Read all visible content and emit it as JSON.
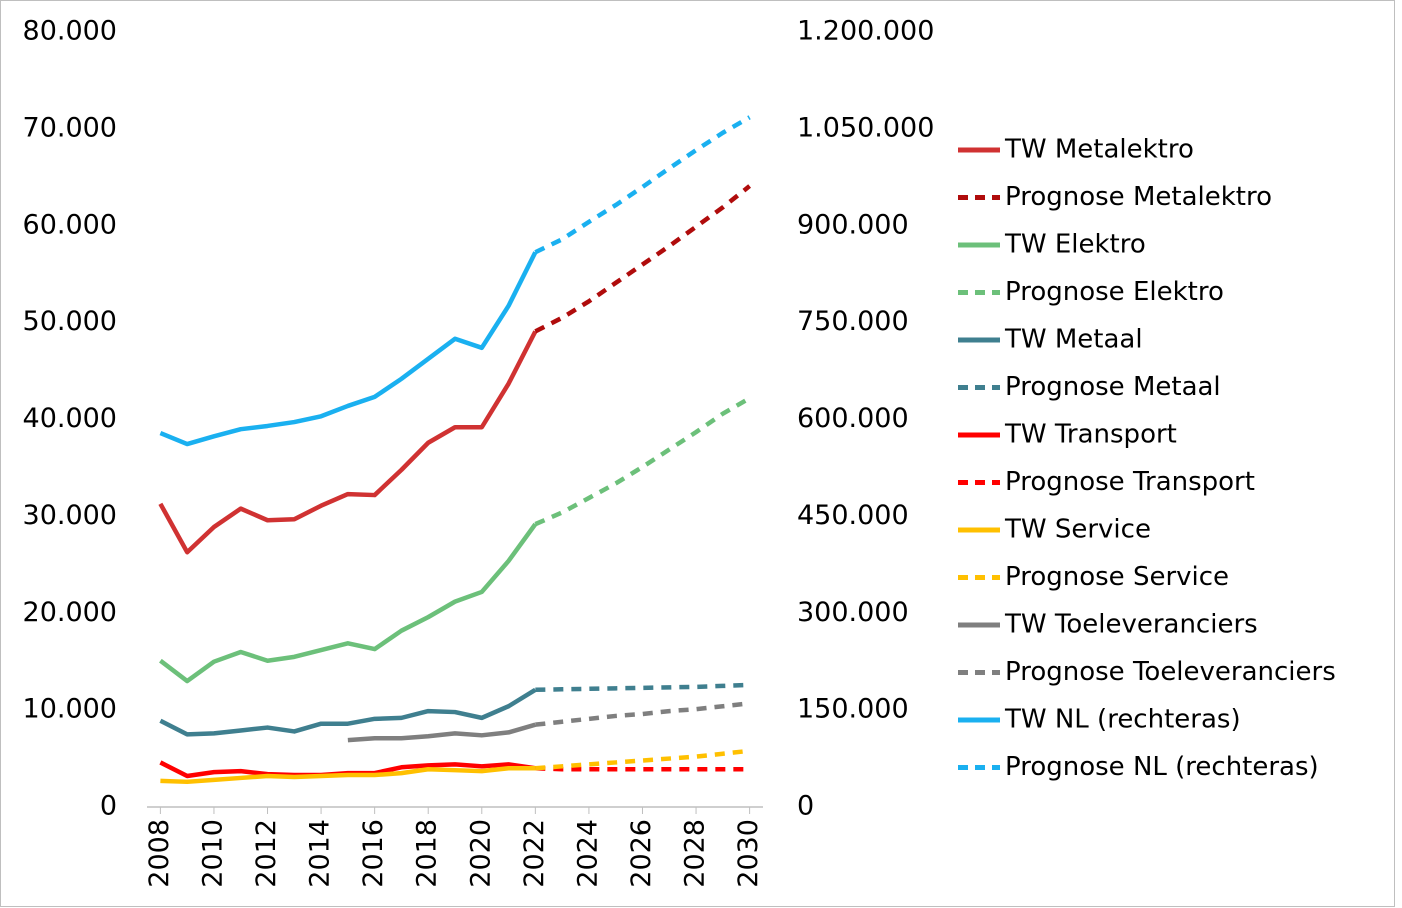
{
  "chart_data": {
    "type": "line",
    "x": [
      2008,
      2009,
      2010,
      2011,
      2012,
      2013,
      2014,
      2015,
      2016,
      2017,
      2018,
      2019,
      2020,
      2021,
      2022,
      2023,
      2024,
      2025,
      2026,
      2027,
      2028,
      2029,
      2030
    ],
    "xlim": [
      2007.5,
      2030.5
    ],
    "xticks": [
      2008,
      2010,
      2012,
      2014,
      2016,
      2018,
      2020,
      2022,
      2024,
      2026,
      2028,
      2030
    ],
    "ylim": [
      0,
      80000
    ],
    "yticks": [
      0,
      {
        "value": 10000,
        "label": "10.000"
      },
      {
        "value": 20000,
        "label": "20.000"
      },
      {
        "value": 30000,
        "label": "30.000"
      },
      {
        "value": 40000,
        "label": "40.000"
      },
      {
        "value": 50000,
        "label": "50.000"
      },
      {
        "value": 60000,
        "label": "60.000"
      },
      {
        "value": 70000,
        "label": "70.000"
      },
      {
        "value": 80000,
        "label": "80.000"
      }
    ],
    "y2lim": [
      0,
      1200000
    ],
    "y2ticks": [
      0,
      {
        "value": 150000,
        "label": "150.000"
      },
      {
        "value": 300000,
        "label": "300.000"
      },
      {
        "value": 450000,
        "label": "450.000"
      },
      {
        "value": 600000,
        "label": "600.000"
      },
      {
        "value": 750000,
        "label": "750.000"
      },
      {
        "value": 900000,
        "label": "900.000"
      },
      {
        "value": 1050000,
        "label": "1.050.000"
      },
      {
        "value": 1200000,
        "label": "1.200.000"
      }
    ],
    "grid": false,
    "legend": "right",
    "series": [
      {
        "name": "TW Metalektro",
        "color": "#d03232",
        "dashed": false,
        "values": [
          31300,
          26300,
          28900,
          30800,
          29600,
          29700,
          31100,
          32300,
          32200,
          34800,
          37600,
          39200,
          39200,
          43700,
          49100,
          null,
          null,
          null,
          null,
          null,
          null,
          null,
          null
        ]
      },
      {
        "name": "Prognose Metalektro",
        "color": "#b00c0c",
        "dashed": true,
        "values": [
          null,
          null,
          null,
          null,
          null,
          null,
          null,
          null,
          null,
          null,
          null,
          null,
          null,
          null,
          49100,
          50500,
          52200,
          54100,
          56000,
          57900,
          59900,
          61900,
          64100
        ]
      },
      {
        "name": "TW Elektro",
        "color": "#6cc07a",
        "dashed": false,
        "values": [
          15100,
          13000,
          15000,
          16000,
          15100,
          15500,
          16200,
          16900,
          16300,
          18200,
          19600,
          21200,
          22200,
          25400,
          29200,
          null,
          null,
          null,
          null,
          null,
          null,
          null,
          null
        ]
      },
      {
        "name": "Prognose Elektro",
        "color": "#6cc07a",
        "dashed": true,
        "values": [
          null,
          null,
          null,
          null,
          null,
          null,
          null,
          null,
          null,
          null,
          null,
          null,
          null,
          null,
          29200,
          30400,
          31900,
          33400,
          35100,
          36900,
          38700,
          40600,
          42200
        ]
      },
      {
        "name": "TW Metaal",
        "color": "#3f7f8f",
        "dashed": false,
        "values": [
          8900,
          7500,
          7600,
          7900,
          8200,
          7800,
          8600,
          8600,
          9100,
          9200,
          9900,
          9800,
          9200,
          10400,
          12100,
          null,
          null,
          null,
          null,
          null,
          null,
          null,
          null
        ]
      },
      {
        "name": "Prognose Metaal",
        "color": "#3f7f8f",
        "dashed": true,
        "values": [
          null,
          null,
          null,
          null,
          null,
          null,
          null,
          null,
          null,
          null,
          null,
          null,
          null,
          null,
          12100,
          12150,
          12200,
          12250,
          12300,
          12350,
          12400,
          12500,
          12600
        ]
      },
      {
        "name": "TW Transport",
        "color": "#ff0000",
        "dashed": false,
        "values": [
          4600,
          3200,
          3600,
          3700,
          3400,
          3300,
          3300,
          3500,
          3500,
          4100,
          4300,
          4400,
          4200,
          4400,
          4000,
          null,
          null,
          null,
          null,
          null,
          null,
          null,
          null
        ]
      },
      {
        "name": "Prognose Transport",
        "color": "#ff0000",
        "dashed": true,
        "values": [
          null,
          null,
          null,
          null,
          null,
          null,
          null,
          null,
          null,
          null,
          null,
          null,
          null,
          null,
          4000,
          3900,
          3900,
          3900,
          3900,
          3900,
          3900,
          3900,
          3900
        ]
      },
      {
        "name": "TW Service",
        "color": "#ffc000",
        "dashed": false,
        "values": [
          2700,
          2600,
          2800,
          3000,
          3200,
          3100,
          3200,
          3300,
          3300,
          3500,
          3900,
          3800,
          3700,
          4000,
          4000,
          null,
          null,
          null,
          null,
          null,
          null,
          null,
          null
        ]
      },
      {
        "name": "Prognose Service",
        "color": "#ffc000",
        "dashed": true,
        "values": [
          null,
          null,
          null,
          null,
          null,
          null,
          null,
          null,
          null,
          null,
          null,
          null,
          null,
          null,
          4000,
          4200,
          4400,
          4600,
          4800,
          5000,
          5200,
          5500,
          5800
        ]
      },
      {
        "name": "TW Toeleveranciers",
        "color": "#7f7f7f",
        "dashed": false,
        "values": [
          null,
          null,
          null,
          null,
          null,
          null,
          null,
          6900,
          7100,
          7100,
          7300,
          7600,
          7400,
          7700,
          8500,
          null,
          null,
          null,
          null,
          null,
          null,
          null,
          null
        ]
      },
      {
        "name": "Prognose Toeleveranciers",
        "color": "#7f7f7f",
        "dashed": true,
        "values": [
          null,
          null,
          null,
          null,
          null,
          null,
          null,
          null,
          null,
          null,
          null,
          null,
          null,
          null,
          8500,
          8800,
          9100,
          9400,
          9600,
          9900,
          10100,
          10400,
          10700
        ]
      },
      {
        "name": "TW NL (rechteras)",
        "color": "#1ab0f0",
        "dashed": false,
        "axis": "y2",
        "values": [
          579000,
          562000,
          574000,
          585000,
          590000,
          596000,
          605000,
          621000,
          635000,
          663000,
          694000,
          725000,
          711000,
          776000,
          859000,
          null,
          null,
          null,
          null,
          null,
          null,
          null,
          null
        ]
      },
      {
        "name": "Prognose NL (rechteras)",
        "color": "#1ab0f0",
        "dashed": true,
        "axis": "y2",
        "values": [
          null,
          null,
          null,
          null,
          null,
          null,
          null,
          null,
          null,
          null,
          null,
          null,
          null,
          null,
          859000,
          879000,
          906000,
          932000,
          960000,
          989000,
          1017000,
          1044000,
          1068000
        ]
      }
    ]
  }
}
